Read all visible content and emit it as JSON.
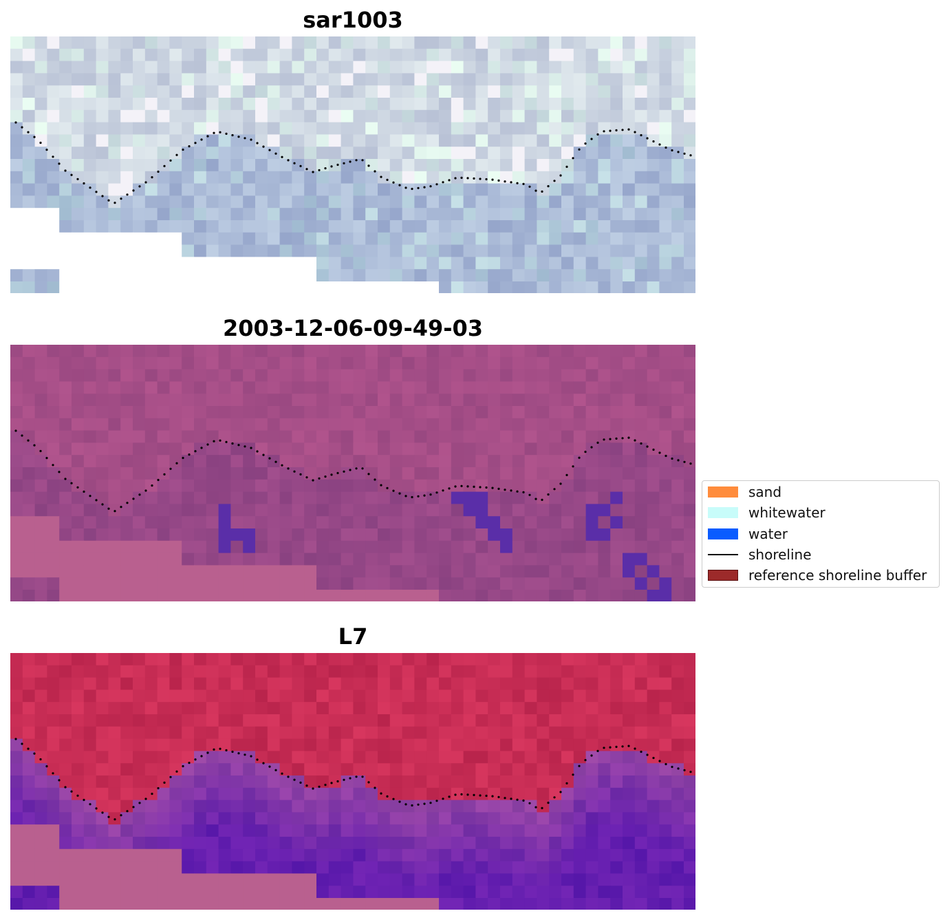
{
  "panels": [
    {
      "title": "sar1003",
      "style": "rgb"
    },
    {
      "title": "2003-12-06-09-49-03",
      "style": "classified"
    },
    {
      "title": "L7",
      "style": "index"
    }
  ],
  "legend": {
    "items": [
      {
        "label": "sand",
        "kind": "patch",
        "color": "#ff8c3c"
      },
      {
        "label": "whitewater",
        "kind": "patch",
        "color": "#c8fcfa"
      },
      {
        "label": "water",
        "kind": "patch",
        "color": "#0a5cff"
      },
      {
        "label": "shoreline",
        "kind": "line",
        "color": "#000000"
      },
      {
        "label": "reference shoreline buffer",
        "kind": "patch",
        "color": "#9c2a2a"
      }
    ]
  },
  "colors": {
    "nodata": "#ffffff",
    "classified_water_pixels": "#5a2ea8",
    "shoreline_points": "#000000"
  }
}
